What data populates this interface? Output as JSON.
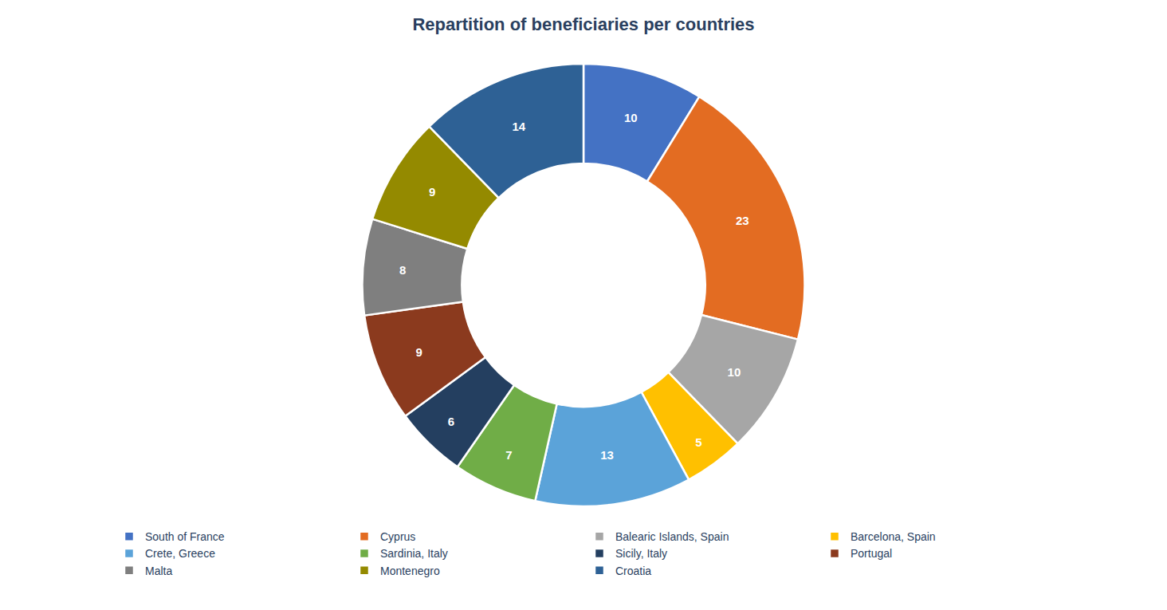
{
  "chart_data": {
    "type": "donut",
    "title": "Repartition of beneficiaries per countries",
    "categories": [
      "South of France",
      "Cyprus",
      "Balearic Islands, Spain",
      "Barcelona, Spain",
      "Crete, Greece",
      "Sardinia, Italy",
      "Sicily, Italy",
      "Portugal",
      "Malta",
      "Montenegro",
      "Croatia"
    ],
    "values": [
      10,
      23,
      10,
      5,
      13,
      7,
      6,
      9,
      8,
      9,
      14
    ],
    "colors": [
      "#4472C4",
      "#E36C22",
      "#A6A6A6",
      "#FFC000",
      "#5BA3D9",
      "#70AD47",
      "#243F60",
      "#8B3A1E",
      "#7F7F7F",
      "#948A00",
      "#2E6195"
    ],
    "data_labels": true,
    "legend": "bottom"
  }
}
